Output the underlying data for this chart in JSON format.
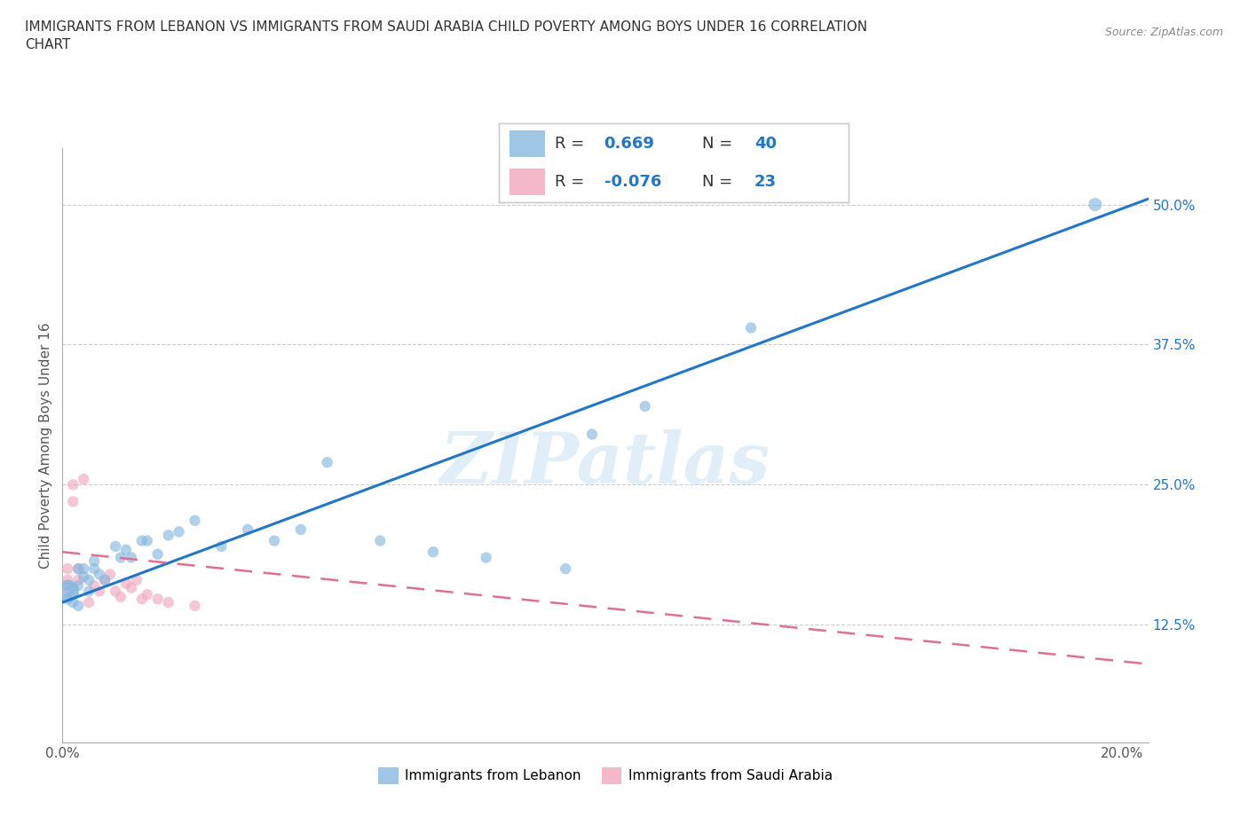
{
  "title": "IMMIGRANTS FROM LEBANON VS IMMIGRANTS FROM SAUDI ARABIA CHILD POVERTY AMONG BOYS UNDER 16 CORRELATION\nCHART",
  "source": "Source: ZipAtlas.com",
  "ylabel": "Child Poverty Among Boys Under 16",
  "xlim": [
    0.0,
    0.205
  ],
  "ylim": [
    0.02,
    0.55
  ],
  "xticks": [
    0.0,
    0.05,
    0.1,
    0.15,
    0.2
  ],
  "xticklabels": [
    "0.0%",
    "",
    "",
    "",
    "20.0%"
  ],
  "ytick_positions": [
    0.125,
    0.25,
    0.375,
    0.5
  ],
  "ytick_labels": [
    "12.5%",
    "25.0%",
    "37.5%",
    "50.0%"
  ],
  "lebanon_color": "#88b8e0",
  "saudi_color": "#f0a8bc",
  "lebanon_line_color": "#2176c8",
  "saudi_line_color": "#e07090",
  "lebanon_R": 0.669,
  "lebanon_N": 40,
  "saudi_R": -0.076,
  "saudi_N": 23,
  "watermark": "ZIPatlas",
  "lebanon_scatter": [
    [
      0.001,
      0.155
    ],
    [
      0.001,
      0.16
    ],
    [
      0.001,
      0.148
    ],
    [
      0.002,
      0.152
    ],
    [
      0.002,
      0.158
    ],
    [
      0.002,
      0.145
    ],
    [
      0.003,
      0.142
    ],
    [
      0.003,
      0.16
    ],
    [
      0.003,
      0.175
    ],
    [
      0.004,
      0.168
    ],
    [
      0.004,
      0.175
    ],
    [
      0.005,
      0.155
    ],
    [
      0.005,
      0.165
    ],
    [
      0.006,
      0.175
    ],
    [
      0.006,
      0.182
    ],
    [
      0.007,
      0.17
    ],
    [
      0.008,
      0.165
    ],
    [
      0.01,
      0.195
    ],
    [
      0.011,
      0.185
    ],
    [
      0.012,
      0.192
    ],
    [
      0.013,
      0.185
    ],
    [
      0.015,
      0.2
    ],
    [
      0.016,
      0.2
    ],
    [
      0.018,
      0.188
    ],
    [
      0.02,
      0.205
    ],
    [
      0.022,
      0.208
    ],
    [
      0.025,
      0.218
    ],
    [
      0.03,
      0.195
    ],
    [
      0.035,
      0.21
    ],
    [
      0.04,
      0.2
    ],
    [
      0.045,
      0.21
    ],
    [
      0.05,
      0.27
    ],
    [
      0.06,
      0.2
    ],
    [
      0.07,
      0.19
    ],
    [
      0.08,
      0.185
    ],
    [
      0.095,
      0.175
    ],
    [
      0.1,
      0.295
    ],
    [
      0.11,
      0.32
    ],
    [
      0.13,
      0.39
    ],
    [
      0.195,
      0.5
    ]
  ],
  "saudi_scatter": [
    [
      0.001,
      0.175
    ],
    [
      0.001,
      0.165
    ],
    [
      0.001,
      0.155
    ],
    [
      0.002,
      0.25
    ],
    [
      0.002,
      0.235
    ],
    [
      0.003,
      0.165
    ],
    [
      0.003,
      0.175
    ],
    [
      0.004,
      0.255
    ],
    [
      0.005,
      0.145
    ],
    [
      0.006,
      0.16
    ],
    [
      0.007,
      0.155
    ],
    [
      0.008,
      0.165
    ],
    [
      0.009,
      0.17
    ],
    [
      0.01,
      0.155
    ],
    [
      0.011,
      0.15
    ],
    [
      0.012,
      0.162
    ],
    [
      0.013,
      0.158
    ],
    [
      0.014,
      0.165
    ],
    [
      0.015,
      0.148
    ],
    [
      0.016,
      0.152
    ],
    [
      0.018,
      0.148
    ],
    [
      0.02,
      0.145
    ],
    [
      0.025,
      0.142
    ]
  ],
  "lebanon_sizes": [
    350,
    80,
    80,
    80,
    80,
    80,
    80,
    80,
    80,
    80,
    80,
    80,
    80,
    80,
    80,
    80,
    80,
    80,
    80,
    80,
    80,
    80,
    80,
    80,
    80,
    80,
    80,
    80,
    80,
    80,
    80,
    80,
    80,
    80,
    80,
    80,
    80,
    80,
    80,
    120
  ],
  "saudi_sizes": [
    80,
    80,
    80,
    80,
    80,
    80,
    80,
    80,
    80,
    80,
    80,
    80,
    80,
    80,
    80,
    80,
    80,
    80,
    80,
    80,
    80,
    80,
    80
  ],
  "lebanon_line_x": [
    0.0,
    0.205
  ],
  "lebanon_line_y": [
    0.145,
    0.505
  ],
  "saudi_line_x": [
    0.0,
    0.205
  ],
  "saudi_line_y": [
    0.19,
    0.09
  ]
}
